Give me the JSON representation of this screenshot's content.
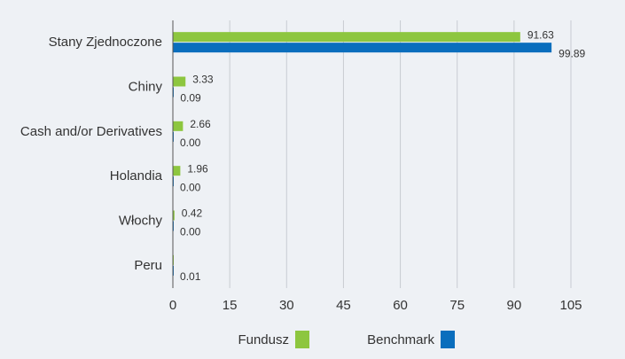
{
  "chart_data": {
    "type": "hbar",
    "categories": [
      "Stany Zjednoczone",
      "Chiny",
      "Cash and/or Derivatives",
      "Holandia",
      "Włochy",
      "Peru"
    ],
    "series": [
      {
        "name": "Fundusz",
        "color": "#8dc63f",
        "values": [
          91.63,
          3.33,
          2.66,
          1.96,
          0.42,
          0.05
        ],
        "value_labels": [
          "91.63",
          "3.33",
          "2.66",
          "1.96",
          "0.42",
          null
        ]
      },
      {
        "name": "Benchmark",
        "color": "#0a6ebd",
        "values": [
          99.89,
          0.09,
          0,
          0,
          0,
          0.01
        ],
        "value_labels": [
          "99.89",
          "0.09",
          "0.00",
          "0.00",
          "0.00",
          "0.01"
        ]
      }
    ],
    "xlim": [
      0,
      105
    ],
    "xticks": [
      0,
      15,
      30,
      45,
      60,
      75,
      90,
      105
    ],
    "grid": true
  }
}
